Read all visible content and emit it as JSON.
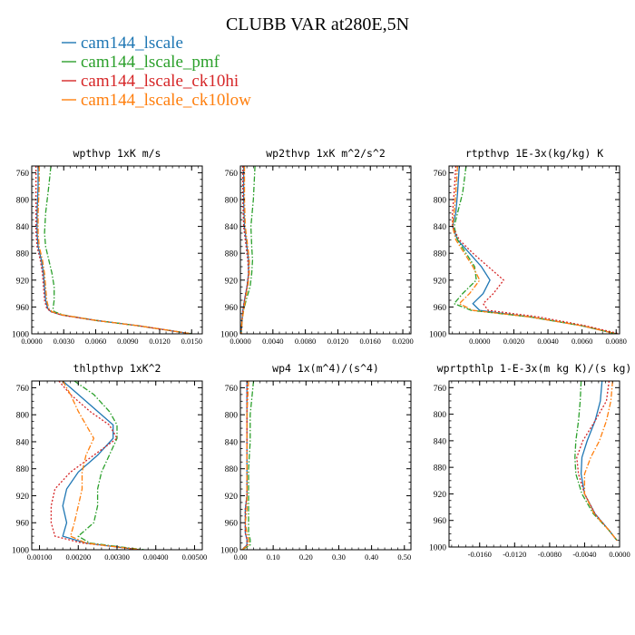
{
  "figure": {
    "title": "CLUBB VAR at280E,5N"
  },
  "legend": [
    {
      "label": "cam144_lscale",
      "color": "#1f77b4",
      "dash": "solid"
    },
    {
      "label": "cam144_lscale_pmf",
      "color": "#2ca02c",
      "dash": "dashdot"
    },
    {
      "label": "cam144_lscale_ck10hi",
      "color": "#d62728",
      "dash": "dot"
    },
    {
      "label": "cam144_lscale_ck10low",
      "color": "#ff7f0e",
      "dash": "dashdot"
    }
  ],
  "chart_data": [
    {
      "type": "line",
      "title": "wpthvp  1xK m/s",
      "xlim": [
        0,
        0.016
      ],
      "ylim": [
        750,
        1000
      ],
      "y_inverted": true,
      "xticks": [
        0,
        0.003,
        0.006,
        0.009,
        0.012,
        0.015
      ],
      "xtick_labels": [
        "0.0000",
        "0.0030",
        "0.0060",
        "0.0090",
        "0.0120",
        "0.0150"
      ],
      "yticks": [
        760,
        800,
        840,
        880,
        920,
        960,
        1000
      ],
      "ytick_labels": [
        "760",
        "800",
        "840",
        "880",
        "920",
        "960",
        "1000"
      ],
      "series": [
        {
          "x": [
            0.0006,
            0.0006,
            0.0005,
            0.0005,
            0.0006,
            0.0009,
            0.0011,
            0.0012,
            0.0013,
            0.0015,
            0.0018,
            0.0028,
            0.006,
            0.01,
            0.015
          ],
          "y": [
            750,
            780,
            820,
            850,
            870,
            890,
            910,
            930,
            950,
            962,
            967,
            972,
            980,
            988,
            1000
          ]
        },
        {
          "x": [
            0.0018,
            0.0016,
            0.0013,
            0.0012,
            0.0013,
            0.0016,
            0.0019,
            0.0021,
            0.0021,
            0.002,
            0.0021,
            0.003,
            0.006,
            0.01,
            0.015
          ],
          "y": [
            750,
            780,
            820,
            850,
            870,
            890,
            910,
            930,
            950,
            962,
            967,
            972,
            980,
            988,
            1000
          ]
        },
        {
          "x": [
            0.0004,
            0.0004,
            0.0004,
            0.0004,
            0.0005,
            0.0008,
            0.001,
            0.0011,
            0.0012,
            0.0014,
            0.0018,
            0.0028,
            0.006,
            0.01,
            0.015
          ],
          "y": [
            750,
            780,
            820,
            850,
            870,
            890,
            910,
            930,
            950,
            962,
            967,
            972,
            980,
            988,
            1000
          ]
        },
        {
          "x": [
            0.0007,
            0.0007,
            0.0006,
            0.0006,
            0.0007,
            0.001,
            0.0012,
            0.0013,
            0.0014,
            0.0016,
            0.0019,
            0.0029,
            0.006,
            0.01,
            0.015
          ],
          "y": [
            750,
            780,
            820,
            850,
            870,
            890,
            910,
            930,
            950,
            962,
            967,
            972,
            980,
            988,
            1000
          ]
        }
      ]
    },
    {
      "type": "line",
      "title": "wp2thvp  1xK m^2/s^2",
      "xlim": [
        0,
        0.021
      ],
      "ylim": [
        750,
        1000
      ],
      "y_inverted": true,
      "xticks": [
        0,
        0.004,
        0.008,
        0.012,
        0.016,
        0.02
      ],
      "xtick_labels": [
        "0.0000",
        "0.0040",
        "0.0080",
        "0.0120",
        "0.0160",
        "0.0200"
      ],
      "yticks": [
        760,
        800,
        840,
        880,
        920,
        960,
        1000
      ],
      "ytick_labels": [
        "760",
        "800",
        "840",
        "880",
        "920",
        "960",
        "1000"
      ],
      "series": [
        {
          "x": [
            0.0004,
            0.0004,
            0.0005,
            0.0008,
            0.001,
            0.001,
            0.0008,
            0.0005,
            0.0003,
            0.0002,
            0.0001
          ],
          "y": [
            750,
            800,
            840,
            870,
            890,
            910,
            930,
            950,
            965,
            980,
            1000
          ]
        },
        {
          "x": [
            0.0018,
            0.0016,
            0.0013,
            0.0014,
            0.0015,
            0.0014,
            0.0012,
            0.0007,
            0.0004,
            0.0002,
            0.0001
          ],
          "y": [
            750,
            800,
            840,
            870,
            890,
            910,
            930,
            950,
            965,
            980,
            1000
          ]
        },
        {
          "x": [
            0.0003,
            0.0003,
            0.0004,
            0.0007,
            0.0009,
            0.001,
            0.0008,
            0.0005,
            0.0003,
            0.0002,
            0.0001
          ],
          "y": [
            750,
            800,
            840,
            870,
            890,
            910,
            930,
            950,
            965,
            980,
            1000
          ]
        },
        {
          "x": [
            0.0005,
            0.0005,
            0.0006,
            0.0009,
            0.0011,
            0.0011,
            0.0009,
            0.0006,
            0.0004,
            0.0002,
            0.0001
          ],
          "y": [
            750,
            800,
            840,
            870,
            890,
            910,
            930,
            950,
            965,
            980,
            1000
          ]
        }
      ]
    },
    {
      "type": "line",
      "title": "rtpthvp  1E-3x(kg/kg) K",
      "xlim": [
        -0.0018,
        0.0082
      ],
      "ylim": [
        750,
        1000
      ],
      "y_inverted": true,
      "xticks": [
        0,
        0.002,
        0.004,
        0.006,
        0.008
      ],
      "xtick_labels": [
        "0.0000",
        "0.0020",
        "0.0040",
        "0.0060",
        "0.0080"
      ],
      "yticks": [
        760,
        800,
        840,
        880,
        920,
        960,
        1000
      ],
      "ytick_labels": [
        "760",
        "800",
        "840",
        "880",
        "920",
        "960",
        "1000"
      ],
      "series": [
        {
          "x": [
            -0.0012,
            -0.0013,
            -0.0014,
            -0.0016,
            -0.0013,
            -0.0006,
            0.0001,
            0.0006,
            0.0002,
            -0.0004,
            0.0,
            0.003,
            0.006,
            0.008
          ],
          "y": [
            750,
            790,
            820,
            840,
            860,
            880,
            900,
            920,
            940,
            955,
            965,
            975,
            988,
            1000
          ]
        },
        {
          "x": [
            -0.0008,
            -0.001,
            -0.0013,
            -0.0015,
            -0.0013,
            -0.0008,
            -0.0003,
            -0.0002,
            -0.001,
            -0.0015,
            -0.0005,
            0.003,
            0.006,
            0.008
          ],
          "y": [
            750,
            790,
            820,
            840,
            860,
            880,
            900,
            920,
            940,
            955,
            965,
            975,
            988,
            1000
          ]
        },
        {
          "x": [
            -0.0014,
            -0.0015,
            -0.0016,
            -0.0016,
            -0.0012,
            -0.0004,
            0.0005,
            0.0014,
            0.0008,
            0.0002,
            0.0005,
            0.0035,
            0.0062,
            0.0082
          ],
          "y": [
            750,
            790,
            820,
            840,
            860,
            880,
            900,
            920,
            940,
            955,
            965,
            975,
            988,
            1000
          ]
        },
        {
          "x": [
            -0.0013,
            -0.0014,
            -0.0015,
            -0.0016,
            -0.0014,
            -0.0009,
            -0.0004,
            0.0,
            -0.0006,
            -0.0012,
            -0.0004,
            0.003,
            0.006,
            0.008
          ],
          "y": [
            750,
            790,
            820,
            840,
            860,
            880,
            900,
            920,
            940,
            955,
            965,
            975,
            988,
            1000
          ]
        }
      ]
    },
    {
      "type": "line",
      "title": "thlpthvp  1xK^2",
      "xlim": [
        0.0008,
        0.0052
      ],
      "ylim": [
        750,
        1000
      ],
      "y_inverted": true,
      "xticks": [
        0.001,
        0.002,
        0.003,
        0.004,
        0.005
      ],
      "xtick_labels": [
        "0.00100",
        "0.00200",
        "0.00300",
        "0.00400",
        "0.00500"
      ],
      "yticks": [
        760,
        800,
        840,
        880,
        920,
        960,
        1000
      ],
      "ytick_labels": [
        "760",
        "800",
        "840",
        "880",
        "920",
        "960",
        "1000"
      ],
      "series": [
        {
          "x": [
            0.0016,
            0.002,
            0.0025,
            0.0029,
            0.0029,
            0.0025,
            0.002,
            0.0017,
            0.0016,
            0.0017,
            0.0016,
            0.0022,
            0.003,
            0.0036
          ],
          "y": [
            750,
            770,
            795,
            815,
            835,
            860,
            885,
            910,
            935,
            960,
            980,
            990,
            996,
            1000
          ]
        },
        {
          "x": [
            0.0019,
            0.0024,
            0.0028,
            0.003,
            0.003,
            0.0028,
            0.0026,
            0.0025,
            0.0025,
            0.0024,
            0.002,
            0.0023,
            0.0031,
            0.0037
          ],
          "y": [
            750,
            770,
            795,
            815,
            835,
            860,
            885,
            910,
            935,
            960,
            980,
            990,
            996,
            1000
          ]
        },
        {
          "x": [
            0.0015,
            0.0018,
            0.0023,
            0.0028,
            0.003,
            0.0024,
            0.0018,
            0.0014,
            0.0013,
            0.0013,
            0.0014,
            0.0021,
            0.003,
            0.0036
          ],
          "y": [
            750,
            770,
            795,
            815,
            835,
            860,
            885,
            910,
            935,
            960,
            980,
            990,
            996,
            1000
          ]
        },
        {
          "x": [
            0.0016,
            0.0018,
            0.002,
            0.0022,
            0.0024,
            0.0022,
            0.0021,
            0.0021,
            0.002,
            0.0019,
            0.0018,
            0.0022,
            0.003,
            0.0036
          ],
          "y": [
            750,
            770,
            795,
            815,
            835,
            860,
            885,
            910,
            935,
            960,
            980,
            990,
            996,
            1000
          ]
        }
      ]
    },
    {
      "type": "line",
      "title": "wp4  1x(m^4)/(s^4)",
      "xlim": [
        0,
        0.52
      ],
      "ylim": [
        750,
        1000
      ],
      "y_inverted": true,
      "xticks": [
        0,
        0.1,
        0.2,
        0.3,
        0.4,
        0.5
      ],
      "xtick_labels": [
        "0.00",
        "0.10",
        "0.20",
        "0.30",
        "0.40",
        "0.50"
      ],
      "yticks": [
        760,
        800,
        840,
        880,
        920,
        960,
        1000
      ],
      "ytick_labels": [
        "760",
        "800",
        "840",
        "880",
        "920",
        "960",
        "1000"
      ],
      "series": [
        {
          "x": [
            0.02,
            0.02,
            0.02,
            0.02,
            0.02,
            0.015,
            0.015,
            0.015,
            0.02,
            0.02,
            0.005
          ],
          "y": [
            750,
            800,
            840,
            880,
            920,
            940,
            960,
            975,
            985,
            993,
            1000
          ]
        },
        {
          "x": [
            0.04,
            0.03,
            0.03,
            0.025,
            0.025,
            0.025,
            0.025,
            0.025,
            0.03,
            0.03,
            0.005
          ],
          "y": [
            750,
            800,
            840,
            880,
            920,
            940,
            960,
            975,
            985,
            993,
            1000
          ]
        },
        {
          "x": [
            0.02,
            0.02,
            0.02,
            0.02,
            0.02,
            0.015,
            0.015,
            0.015,
            0.02,
            0.02,
            0.005
          ],
          "y": [
            750,
            800,
            840,
            880,
            920,
            940,
            960,
            975,
            985,
            993,
            1000
          ]
        },
        {
          "x": [
            0.025,
            0.02,
            0.02,
            0.02,
            0.02,
            0.02,
            0.015,
            0.02,
            0.025,
            0.025,
            0.005
          ],
          "y": [
            750,
            800,
            840,
            880,
            920,
            940,
            960,
            975,
            985,
            993,
            1000
          ]
        }
      ]
    },
    {
      "type": "line",
      "title": "wprtpthlp  1-E-3x(m kg K)/(s kg)",
      "xlim": [
        -0.0195,
        0
      ],
      "ylim": [
        750,
        1000
      ],
      "y_inverted": true,
      "xticks": [
        -0.016,
        -0.012,
        -0.008,
        -0.004,
        0
      ],
      "xtick_labels": [
        "-0.0160",
        "-0.0120",
        "-0.0080",
        "-0.0040",
        "0.0000"
      ],
      "yticks": [
        760,
        800,
        840,
        880,
        920,
        960,
        1000
      ],
      "ytick_labels": [
        "760",
        "800",
        "840",
        "880",
        "920",
        "960",
        "1000"
      ],
      "series": [
        {
          "x": [
            -0.002,
            -0.0022,
            -0.0028,
            -0.0037,
            -0.0043,
            -0.0044,
            -0.004,
            -0.0028,
            -0.0012,
            -0.0003
          ],
          "y": [
            750,
            780,
            810,
            840,
            865,
            890,
            920,
            950,
            975,
            990
          ]
        },
        {
          "x": [
            -0.0044,
            -0.0045,
            -0.0047,
            -0.005,
            -0.0051,
            -0.005,
            -0.0043,
            -0.003,
            -0.0012,
            -0.0003
          ],
          "y": [
            750,
            780,
            810,
            840,
            865,
            890,
            920,
            950,
            975,
            990
          ]
        },
        {
          "x": [
            -0.0012,
            -0.0015,
            -0.0028,
            -0.0042,
            -0.0049,
            -0.0047,
            -0.004,
            -0.0028,
            -0.0012,
            -0.0003
          ],
          "y": [
            750,
            780,
            810,
            840,
            865,
            890,
            920,
            950,
            975,
            990
          ]
        },
        {
          "x": [
            -0.0008,
            -0.001,
            -0.0015,
            -0.0023,
            -0.0033,
            -0.004,
            -0.004,
            -0.0029,
            -0.0012,
            -0.0003
          ],
          "y": [
            750,
            780,
            810,
            840,
            865,
            890,
            920,
            950,
            975,
            990
          ]
        }
      ]
    }
  ]
}
